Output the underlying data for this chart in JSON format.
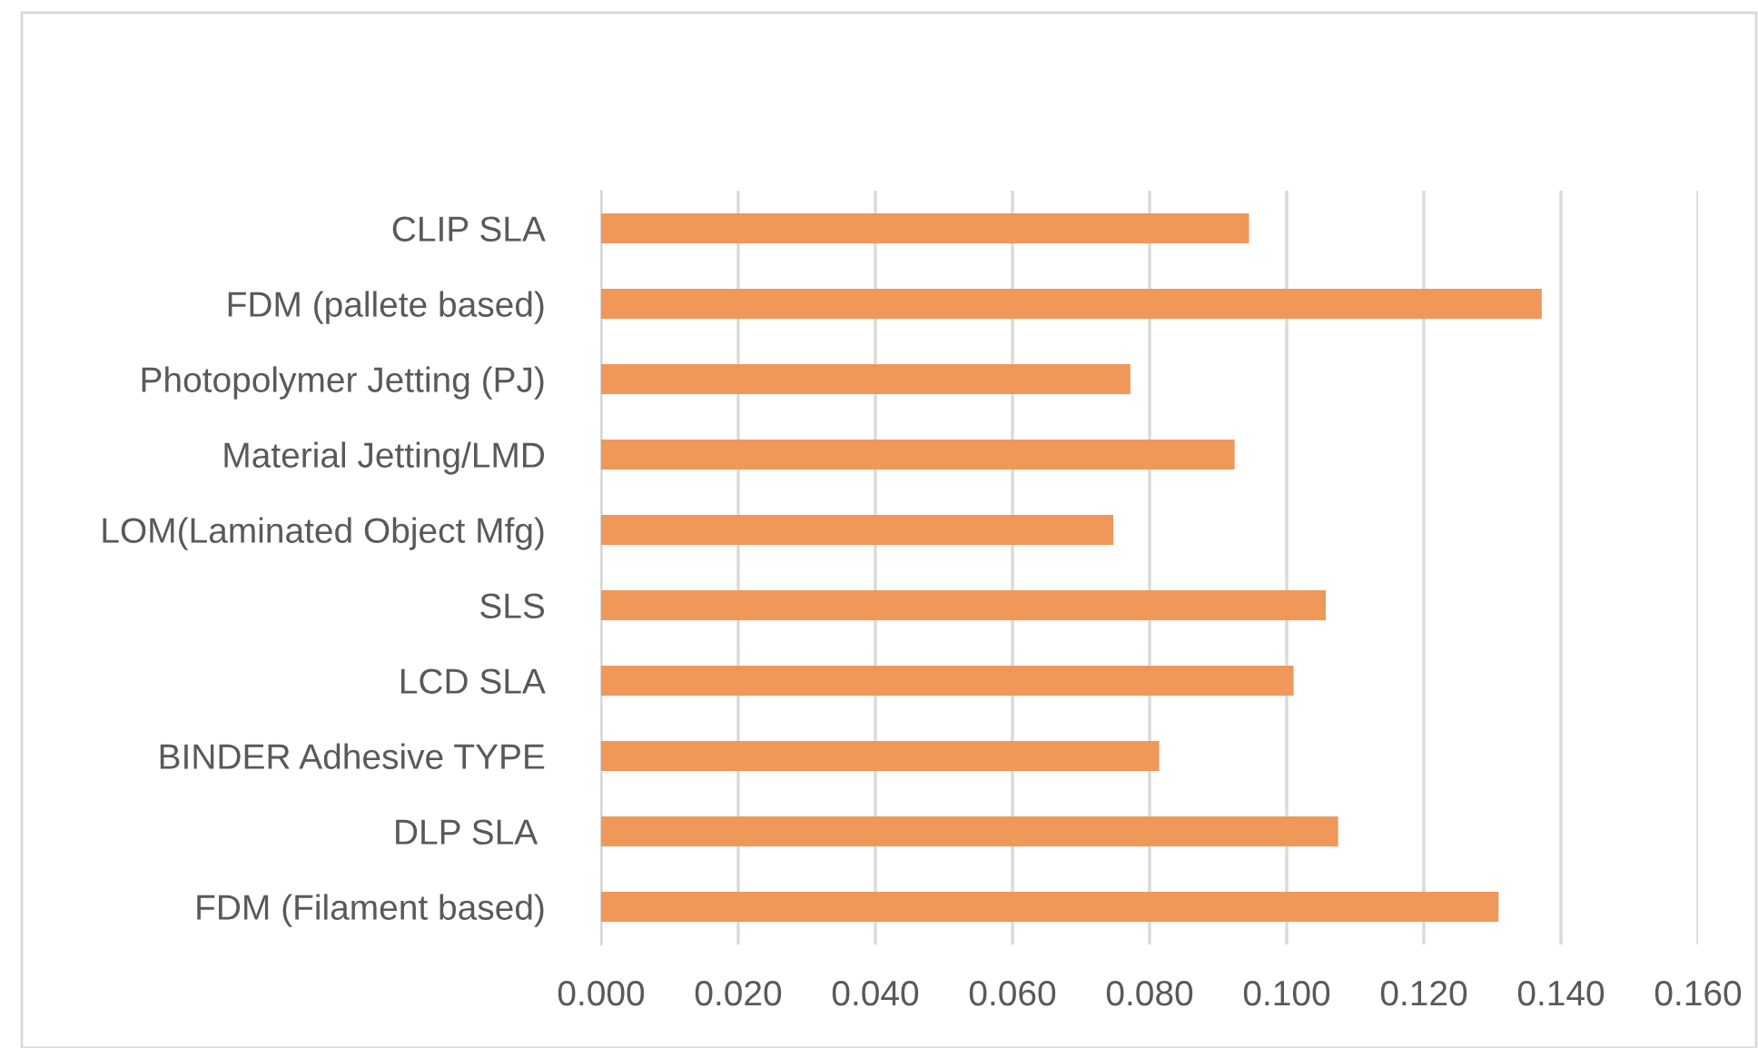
{
  "chart_data": {
    "type": "bar",
    "orientation": "horizontal",
    "categories": [
      "CLIP SLA",
      "FDM (pallete based)",
      "Photopolymer Jetting (PJ)",
      "Material Jetting/LMD",
      "LOM(Laminated Object Mfg)",
      "SLS",
      "LCD SLA",
      "BINDER Adhesive TYPE",
      "DLP SLA ",
      "FDM (Filament based)"
    ],
    "values": [
      0.0945,
      0.1372,
      0.0772,
      0.0924,
      0.0747,
      0.1057,
      0.101,
      0.0814,
      0.1075,
      0.1309
    ],
    "color": "#f0975a",
    "xlim": [
      0,
      0.16
    ],
    "xticks": [
      {
        "value": 0,
        "label": "0.000"
      },
      {
        "value": 0.02,
        "label": "0.020"
      },
      {
        "value": 0.04,
        "label": "0.040"
      },
      {
        "value": 0.06,
        "label": "0.060"
      },
      {
        "value": 0.08,
        "label": "0.080"
      },
      {
        "value": 0.1,
        "label": "0.100"
      },
      {
        "value": 0.12,
        "label": "0.120"
      },
      {
        "value": 0.14,
        "label": "0.140"
      },
      {
        "value": 0.16,
        "label": "0.160"
      }
    ],
    "grid": "x",
    "legend": false
  }
}
